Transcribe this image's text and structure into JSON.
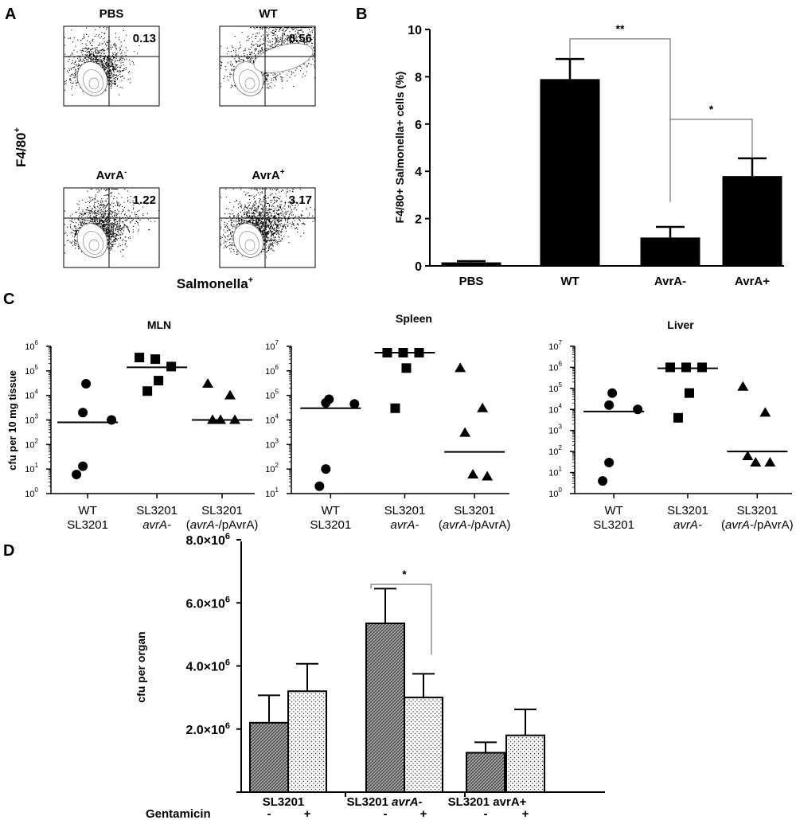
{
  "panel_labels": {
    "a": "A",
    "b": "B",
    "c": "C",
    "d": "D"
  },
  "chart_data": [
    {
      "id": "A",
      "type": "scatter",
      "subtype": "flow-cytometry-density",
      "ylabel": "F4/80",
      "ylabel_sup": "+",
      "xlabel": "Salmonella",
      "xlabel_sup": "+",
      "plots": [
        {
          "title": "PBS",
          "title_sup": "",
          "value": "0.13"
        },
        {
          "title": "WT",
          "title_sup": "",
          "value": "8.56"
        },
        {
          "title": "AvrA",
          "title_sup": "-",
          "value": "1.22"
        },
        {
          "title": "AvrA",
          "title_sup": "+",
          "value": "3.17"
        }
      ]
    },
    {
      "id": "B",
      "type": "bar",
      "categories": [
        "PBS",
        "WT",
        "AvrA-",
        "AvrA+"
      ],
      "values": [
        0.15,
        7.9,
        1.2,
        3.8
      ],
      "errors": [
        0.05,
        0.85,
        0.45,
        0.75
      ],
      "ylabel": "F4/80+ Salmonella+ cells (%)",
      "ylim": [
        0,
        10
      ],
      "yticks": [
        "0",
        "2",
        "4",
        "6",
        "8",
        "10"
      ],
      "significance": [
        {
          "from": 1,
          "to": 2,
          "label": "**"
        },
        {
          "from": 2,
          "to": 3,
          "label": "*"
        }
      ]
    },
    {
      "id": "C",
      "type": "scatter",
      "scale": "log",
      "ylabel": "cfu per 10 mg tissue",
      "groups": [
        {
          "line1": "WT",
          "line2": "SL3201",
          "line2_italic": "",
          "line2_after": "",
          "marker": "circle"
        },
        {
          "line1": "SL3201",
          "line2": "",
          "line2_italic": "avrA-",
          "line2_after": "",
          "marker": "square"
        },
        {
          "line1": "SL3201",
          "line2": "(",
          "line2_italic": "avrA-",
          "line2_after": "/pAvrA)",
          "marker": "triangle"
        }
      ],
      "subplots": [
        {
          "title": "MLN",
          "ylim_exp": [
            0,
            6
          ],
          "points": [
            [
              30000,
              2000,
              1000,
              13,
              6
            ],
            [
              350000,
              300000,
              150000,
              40000,
              15000
            ],
            [
              30000,
              10000,
              1000,
              1000,
              1000
            ]
          ],
          "medians": [
            800,
            140000,
            1000
          ]
        },
        {
          "title": "Spleen",
          "ylim_exp": [
            1,
            7
          ],
          "points": [
            [
              70000,
              50000,
              45000,
              100,
              20
            ],
            [
              5500000,
              5500000,
              5500000,
              1300000,
              30000
            ],
            [
              1300000,
              30000,
              3000,
              60,
              50
            ]
          ],
          "medians": [
            30000,
            5500000,
            500
          ]
        },
        {
          "title": "Liver",
          "ylim_exp": [
            0,
            7
          ],
          "points": [
            [
              60000,
              16000,
              10000,
              30,
              4
            ],
            [
              1000000,
              1000000,
              1000000,
              60000,
              4000
            ],
            [
              120000,
              7000,
              60,
              30,
              30
            ]
          ],
          "medians": [
            8000,
            900000,
            100
          ]
        }
      ]
    },
    {
      "id": "D",
      "type": "bar",
      "ylabel": "cfu per organ",
      "ylim": [
        0,
        8000000
      ],
      "yticks": [
        {
          "mant": "",
          "exp": ""
        },
        {
          "mant": "2.0×10",
          "exp": "6"
        },
        {
          "mant": "4.0×10",
          "exp": "6"
        },
        {
          "mant": "6.0×10",
          "exp": "6"
        },
        {
          "mant": "8.0×10",
          "exp": "6"
        }
      ],
      "categories": [
        {
          "name": "SL3201",
          "name_italic": ""
        },
        {
          "name": "SL3201",
          "name_italic": "avrA-"
        },
        {
          "name": "SL3201",
          "name_italic": "avrA+"
        }
      ],
      "row_label": "Gentamicin",
      "treatments": [
        "-",
        "+"
      ],
      "series": [
        {
          "name": "-",
          "values": [
            2200000,
            5350000,
            1250000
          ],
          "errors": [
            870000,
            1100000,
            330000
          ]
        },
        {
          "name": "+",
          "values": [
            3200000,
            3000000,
            1800000
          ],
          "errors": [
            870000,
            750000,
            820000
          ]
        }
      ],
      "significance": [
        {
          "category": 1,
          "label": "*"
        }
      ]
    }
  ]
}
